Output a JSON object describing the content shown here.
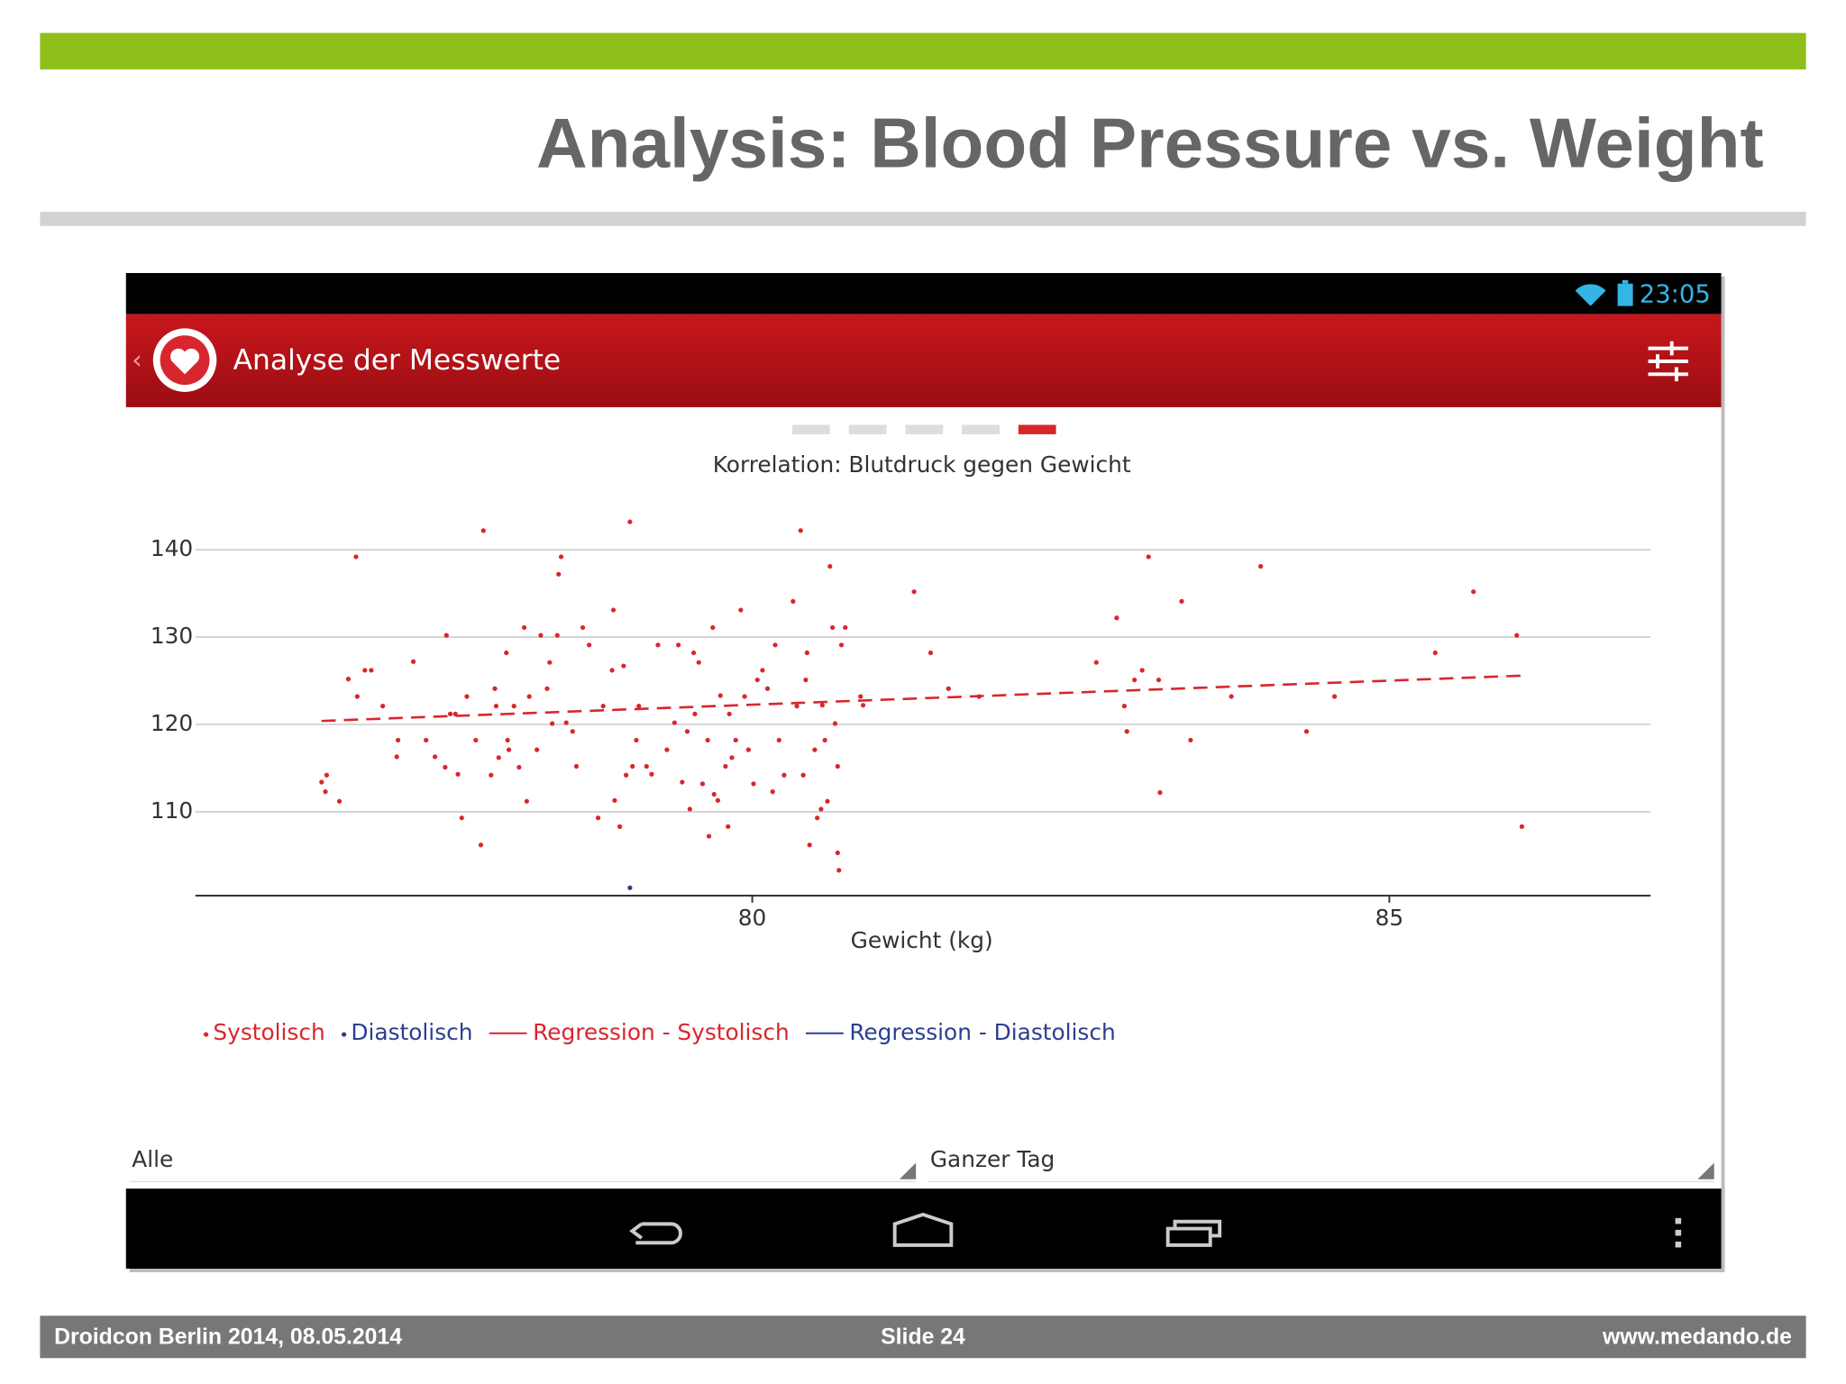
{
  "slide": {
    "title": "Analysis: Blood Pressure vs. Weight"
  },
  "footer": {
    "left": "Droidcon Berlin 2014, 08.05.2014",
    "center": "Slide 24",
    "right": "www.medando.de"
  },
  "app": {
    "time": "23:05",
    "bar_title": "Analyse der Messwerte",
    "spinner_left": "Alle",
    "spinner_right": "Ganzer Tag"
  },
  "chart_data": {
    "type": "scatter",
    "title": "Korrelation: Blutdruck gegen Gewicht",
    "xlabel": "Gewicht (kg)",
    "xlim": [
      75.63,
      87.05
    ],
    "ylim": [
      100.4,
      144.2
    ],
    "xticks": [
      80,
      85
    ],
    "yticks": [
      110,
      120,
      130,
      140
    ],
    "grid": true,
    "series": [
      {
        "name": "Systolisch",
        "type": "scatter",
        "color": "#d8262e",
        "x": [
          76.89,
          76.62,
          76.66,
          76.65,
          76.76,
          76.83,
          76.9,
          76.96,
          77.01,
          77.1,
          77.22,
          77.21,
          77.34,
          77.44,
          77.51,
          77.6,
          77.59,
          77.63,
          77.67,
          77.69,
          77.72,
          77.76,
          77.83,
          77.87,
          77.89,
          77.95,
          77.98,
          77.99,
          78.01,
          78.07,
          78.08,
          78.09,
          78.13,
          78.17,
          78.21,
          78.23,
          78.25,
          78.31,
          78.34,
          78.39,
          78.41,
          78.43,
          78.47,
          78.48,
          78.5,
          78.54,
          78.59,
          78.62,
          78.67,
          78.72,
          78.79,
          78.83,
          78.91,
          78.9,
          78.92,
          78.96,
          78.99,
          79.01,
          79.04,
          79.06,
          79.09,
          79.11,
          79.17,
          79.21,
          79.26,
          79.33,
          79.39,
          79.42,
          79.45,
          79.49,
          79.51,
          79.54,
          79.55,
          79.58,
          79.61,
          79.65,
          79.66,
          79.69,
          79.7,
          79.73,
          79.75,
          79.79,
          79.81,
          79.82,
          79.84,
          79.87,
          79.91,
          79.94,
          79.97,
          80.01,
          80.04,
          80.08,
          80.12,
          80.16,
          80.18,
          80.21,
          80.25,
          80.32,
          80.35,
          80.38,
          80.4,
          80.42,
          80.43,
          80.45,
          80.49,
          80.51,
          80.54,
          80.55,
          80.57,
          80.59,
          80.61,
          80.63,
          80.65,
          80.67,
          80.67,
          80.68,
          80.7,
          80.73,
          80.85,
          80.87,
          81.27,
          81.4,
          81.54,
          81.78,
          82.7,
          82.86,
          82.92,
          82.94,
          83.0,
          83.06,
          83.11,
          83.19,
          83.2,
          83.37,
          83.44,
          83.76,
          83.99,
          84.35,
          84.57,
          85.36,
          85.66,
          86.0,
          86.04
        ],
        "values": [
          139.2,
          113.4,
          114.2,
          112.3,
          111.2,
          125.2,
          123.2,
          126.2,
          126.2,
          122.1,
          118.2,
          116.3,
          127.2,
          118.2,
          116.3,
          130.2,
          115.1,
          121.2,
          121.2,
          114.3,
          109.3,
          123.2,
          118.2,
          106.2,
          142.2,
          114.2,
          124.1,
          122.1,
          116.2,
          128.2,
          118.2,
          117.1,
          122.1,
          115.1,
          131.1,
          111.2,
          123.2,
          117.1,
          130.2,
          124.1,
          127.1,
          120.1,
          130.2,
          137.2,
          139.2,
          120.2,
          119.2,
          115.2,
          131.1,
          129.1,
          109.3,
          122.1,
          133.1,
          126.2,
          111.3,
          108.3,
          126.7,
          114.2,
          143.2,
          115.2,
          118.2,
          122.1,
          115.2,
          114.3,
          129.1,
          117.1,
          120.2,
          129.1,
          113.4,
          119.2,
          110.3,
          128.2,
          121.2,
          127.1,
          113.2,
          118.2,
          107.2,
          131.1,
          112.0,
          111.3,
          123.3,
          115.2,
          108.3,
          121.2,
          116.2,
          118.2,
          133.1,
          123.2,
          117.1,
          113.2,
          125.1,
          126.2,
          124.1,
          112.3,
          129.1,
          118.2,
          114.2,
          134.1,
          122.1,
          142.2,
          114.2,
          125.1,
          128.2,
          106.2,
          117.1,
          109.3,
          110.3,
          122.2,
          118.2,
          111.2,
          138.1,
          131.1,
          120.1,
          115.2,
          105.3,
          103.3,
          129.1,
          131.1,
          123.2,
          122.2,
          135.2,
          128.2,
          124.1,
          123.2,
          127.1,
          132.2,
          122.1,
          119.2,
          125.1,
          126.2,
          139.2,
          125.1,
          112.2,
          134.1,
          118.2,
          123.2,
          138.1,
          119.2,
          123.2,
          128.2,
          135.2,
          130.2,
          108.3
        ]
      },
      {
        "name": "Diastolisch",
        "type": "scatter",
        "color": "#2b3f8f",
        "x": [
          79.04
        ],
        "values": [
          101.3
        ]
      },
      {
        "name": "Regression - Systolisch",
        "type": "line",
        "style": "dashed",
        "color": "#d8262e",
        "x": [
          76.62,
          86.06
        ],
        "values": [
          120.4,
          125.6
        ]
      },
      {
        "name": "Regression - Diastolisch",
        "type": "line",
        "style": "dashed",
        "color": "#2b3f8f",
        "x": [],
        "values": []
      }
    ]
  }
}
